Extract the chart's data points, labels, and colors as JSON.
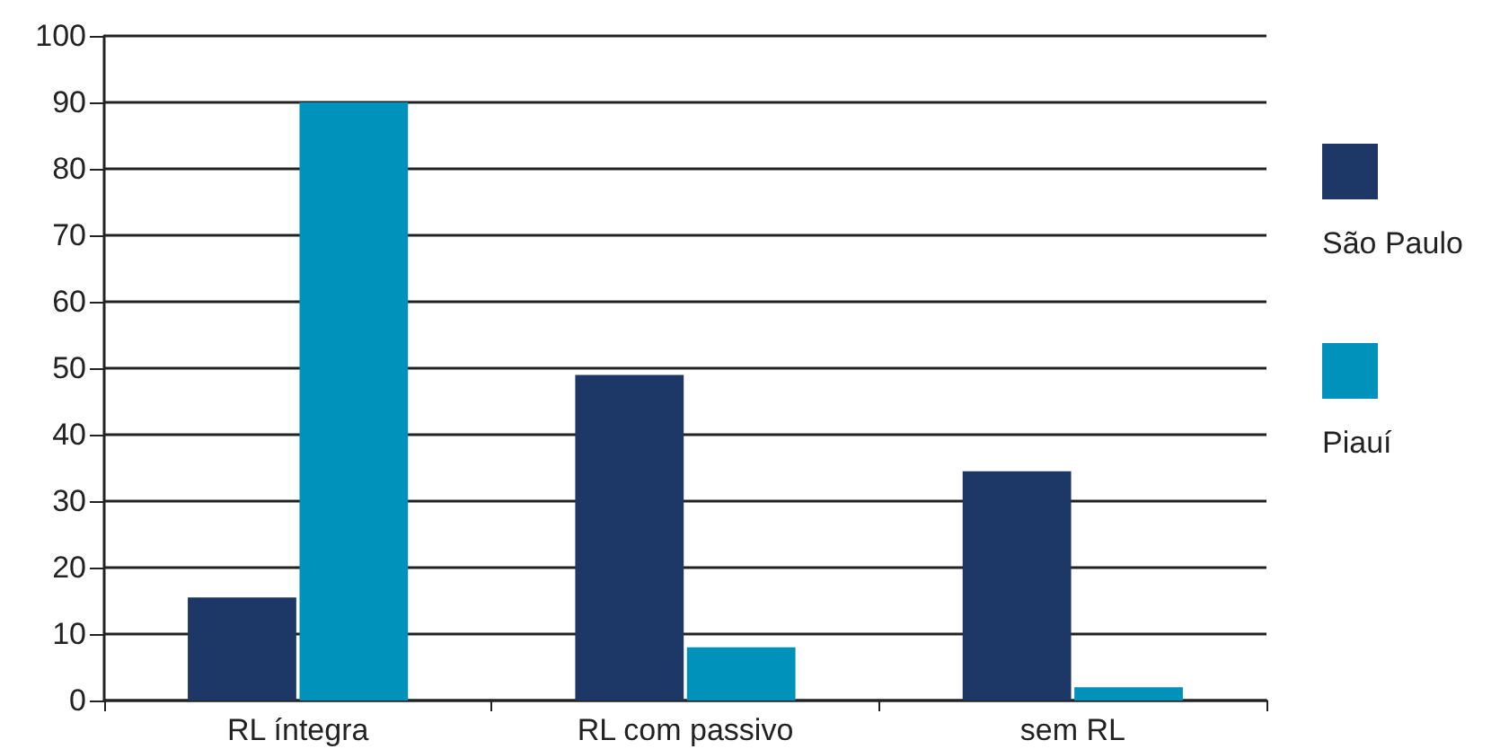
{
  "chart_data": {
    "type": "bar",
    "categories": [
      "RL íntegra",
      "RL com passivo",
      "sem RL"
    ],
    "series": [
      {
        "name": "São Paulo",
        "color": "#1d3766",
        "values": [
          15.5,
          49,
          34.5
        ]
      },
      {
        "name": "Piauí",
        "color": "#0192bc",
        "values": [
          90,
          8,
          2
        ]
      }
    ],
    "ylim": [
      0,
      100
    ],
    "yticks": [
      0,
      10,
      20,
      30,
      40,
      50,
      60,
      70,
      80,
      90,
      100
    ],
    "grid": "y",
    "legend": "right"
  }
}
